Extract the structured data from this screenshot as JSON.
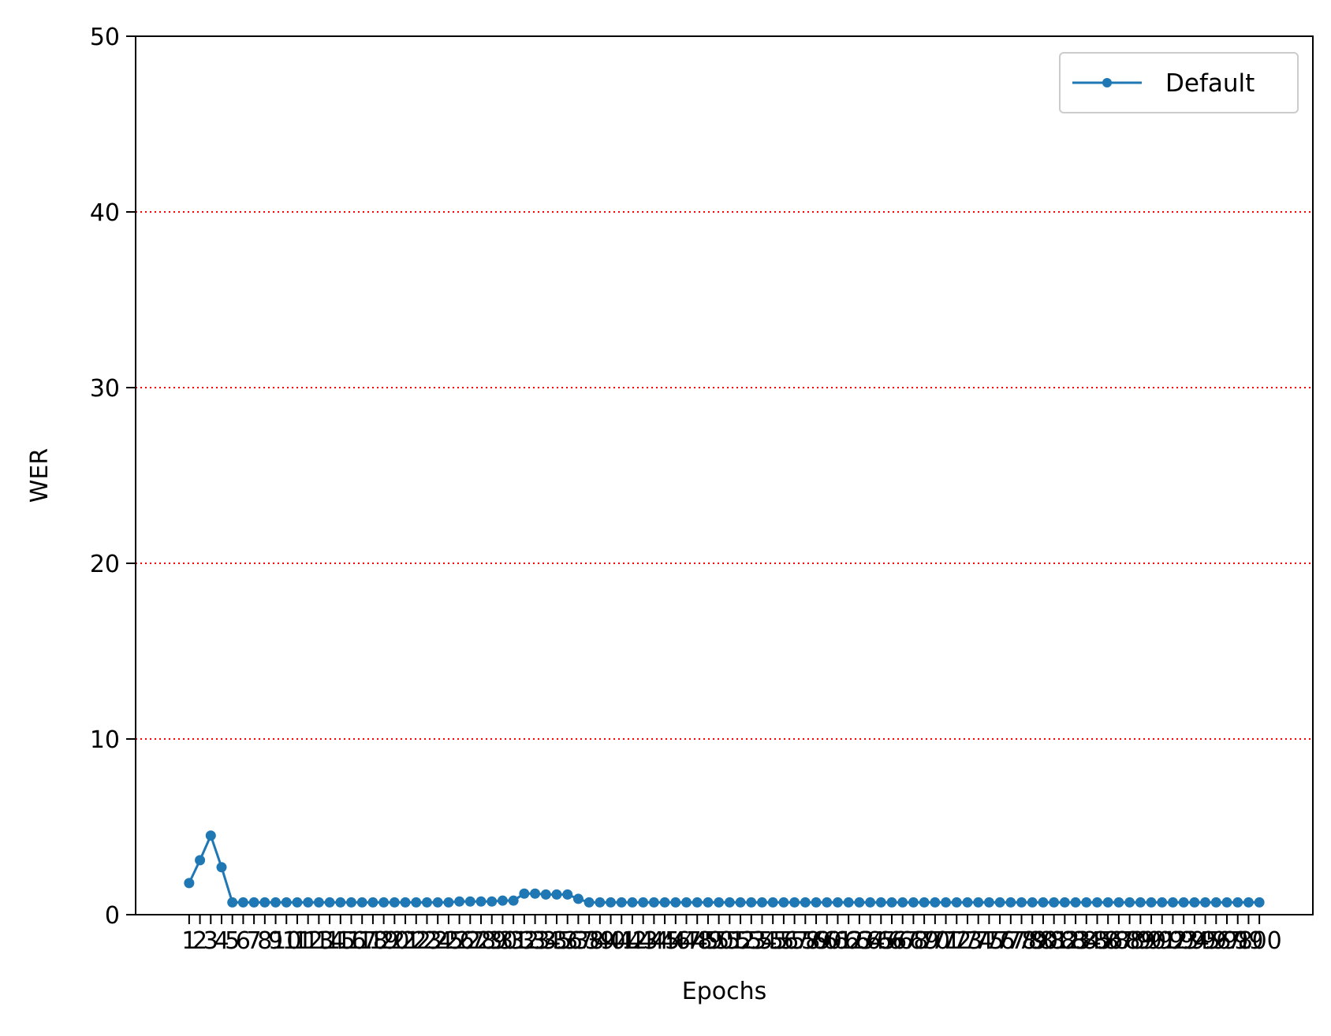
{
  "chart_data": {
    "type": "line",
    "title": "",
    "xlabel": "Epochs",
    "ylabel": "WER",
    "ylim": [
      0,
      50
    ],
    "yticks": [
      0,
      10,
      20,
      30,
      40,
      50
    ],
    "x": [
      1,
      2,
      3,
      4,
      5,
      6,
      7,
      8,
      9,
      10,
      11,
      12,
      13,
      14,
      15,
      16,
      17,
      18,
      19,
      20,
      21,
      22,
      23,
      24,
      25,
      26,
      27,
      28,
      29,
      30,
      31,
      32,
      33,
      34,
      35,
      36,
      37,
      38,
      39,
      40,
      41,
      42,
      43,
      44,
      45,
      46,
      47,
      48,
      49,
      50,
      51,
      52,
      53,
      54,
      55,
      56,
      57,
      58,
      59,
      60,
      61,
      62,
      63,
      64,
      65,
      66,
      67,
      68,
      69,
      70,
      71,
      72,
      73,
      74,
      75,
      76,
      77,
      78,
      79,
      80,
      81,
      82,
      83,
      84,
      85,
      86,
      87,
      88,
      89,
      90,
      91,
      92,
      93,
      94,
      95,
      96,
      97,
      98,
      99,
      100
    ],
    "series": [
      {
        "name": "Default",
        "color": "#1f77b4",
        "marker": "circle",
        "values": [
          1.8,
          3.1,
          4.5,
          2.7,
          0.7,
          0.7,
          0.7,
          0.7,
          0.7,
          0.7,
          0.7,
          0.7,
          0.7,
          0.7,
          0.7,
          0.7,
          0.7,
          0.7,
          0.7,
          0.7,
          0.7,
          0.7,
          0.7,
          0.7,
          0.7,
          0.75,
          0.75,
          0.75,
          0.75,
          0.8,
          0.8,
          1.2,
          1.2,
          1.15,
          1.15,
          1.15,
          0.9,
          0.7,
          0.7,
          0.7,
          0.7,
          0.7,
          0.7,
          0.7,
          0.7,
          0.7,
          0.7,
          0.7,
          0.7,
          0.7,
          0.7,
          0.7,
          0.7,
          0.7,
          0.7,
          0.7,
          0.7,
          0.7,
          0.7,
          0.7,
          0.7,
          0.7,
          0.7,
          0.7,
          0.7,
          0.7,
          0.7,
          0.7,
          0.7,
          0.7,
          0.7,
          0.7,
          0.7,
          0.7,
          0.7,
          0.7,
          0.7,
          0.7,
          0.7,
          0.7,
          0.7,
          0.7,
          0.7,
          0.7,
          0.7,
          0.7,
          0.7,
          0.7,
          0.7,
          0.7,
          0.7,
          0.7,
          0.7,
          0.7,
          0.7,
          0.7,
          0.7,
          0.7,
          0.7,
          0.7
        ]
      }
    ],
    "grid": {
      "axis": "y",
      "style": "dotted",
      "color": "#ff0000"
    },
    "legend": {
      "placement": "upper-right",
      "entries": [
        "Default"
      ]
    }
  }
}
